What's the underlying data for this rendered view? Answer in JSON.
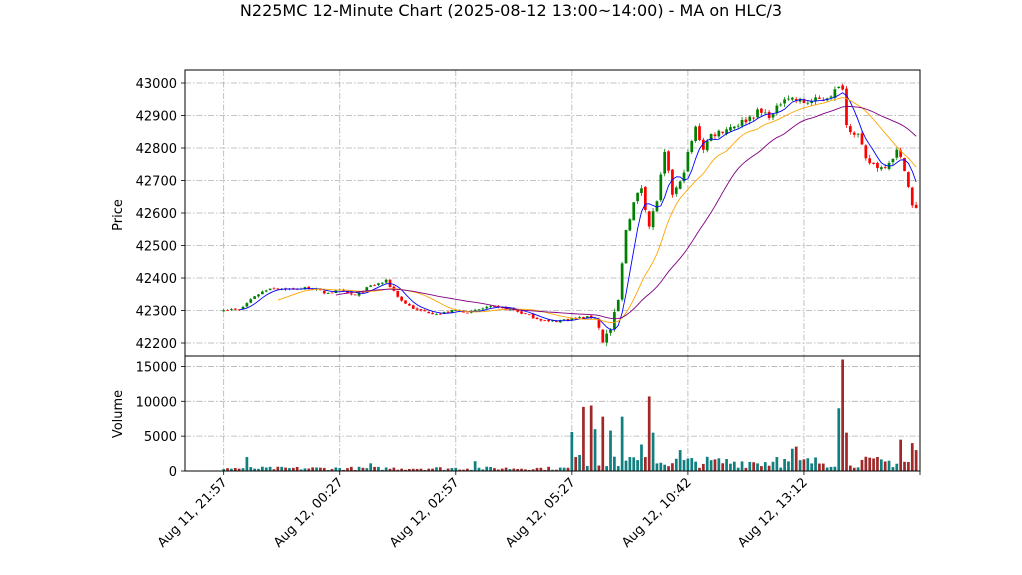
{
  "chart_data": {
    "type": "candlestick",
    "title": "N225MC 12-Minute Chart (2025-08-12 13:00~14:00) - MA on HLC/3",
    "price_panel": {
      "ylabel": "Price",
      "ylim": [
        42160,
        43040
      ],
      "yticks": [
        42200,
        42300,
        42400,
        42500,
        42600,
        42700,
        42800,
        42900,
        43000
      ],
      "ytick_labels": [
        "42200",
        "42300",
        "42400",
        "42500",
        "42600",
        "42700",
        "42800",
        "42900",
        "43000"
      ]
    },
    "volume_panel": {
      "ylabel": "Volume",
      "ylim": [
        0,
        16500
      ],
      "yticks": [
        0,
        5000,
        10000,
        15000
      ],
      "ytick_labels": [
        "0",
        "5000",
        "10000",
        "15000"
      ]
    },
    "x_range": [
      -10,
      180
    ],
    "x_ticks": [
      0,
      30,
      60,
      90,
      120,
      150,
      180
    ],
    "x_tick_labels": [
      "Aug 11, 21:57",
      "Aug 12, 00:27",
      "Aug 12, 02:57",
      "Aug 12, 05:27",
      "Aug 12, 10:42",
      "Aug 12, 13:12",
      ""
    ],
    "bar_count": 180,
    "anchors": [
      [
        0,
        42305
      ],
      [
        4,
        42300
      ],
      [
        8,
        42345
      ],
      [
        12,
        42370
      ],
      [
        18,
        42365
      ],
      [
        22,
        42370
      ],
      [
        26,
        42355
      ],
      [
        30,
        42360
      ],
      [
        34,
        42345
      ],
      [
        38,
        42375
      ],
      [
        42,
        42390
      ],
      [
        46,
        42330
      ],
      [
        50,
        42300
      ],
      [
        56,
        42290
      ],
      [
        60,
        42300
      ],
      [
        64,
        42295
      ],
      [
        68,
        42310
      ],
      [
        74,
        42305
      ],
      [
        80,
        42280
      ],
      [
        84,
        42265
      ],
      [
        90,
        42275
      ],
      [
        96,
        42280
      ],
      [
        98,
        42210
      ],
      [
        100,
        42240
      ],
      [
        102,
        42330
      ],
      [
        104,
        42550
      ],
      [
        106,
        42630
      ],
      [
        108,
        42680
      ],
      [
        110,
        42560
      ],
      [
        112,
        42640
      ],
      [
        114,
        42780
      ],
      [
        116,
        42660
      ],
      [
        118,
        42690
      ],
      [
        120,
        42780
      ],
      [
        122,
        42860
      ],
      [
        124,
        42800
      ],
      [
        126,
        42840
      ],
      [
        130,
        42860
      ],
      [
        134,
        42880
      ],
      [
        138,
        42910
      ],
      [
        142,
        42900
      ],
      [
        145,
        42960
      ],
      [
        150,
        42940
      ],
      [
        155,
        42950
      ],
      [
        158,
        42975
      ],
      [
        160,
        42990
      ],
      [
        161,
        42870
      ],
      [
        164,
        42840
      ],
      [
        166,
        42760
      ],
      [
        170,
        42740
      ],
      [
        172,
        42760
      ],
      [
        174,
        42790
      ],
      [
        176,
        42740
      ],
      [
        177,
        42680
      ],
      [
        178,
        42620
      ],
      [
        179,
        42610
      ]
    ],
    "volume_spikes": [
      [
        6,
        2000
      ],
      [
        38,
        1100
      ],
      [
        65,
        1400
      ],
      [
        90,
        5600
      ],
      [
        92,
        2300
      ],
      [
        93,
        9200
      ],
      [
        95,
        9400
      ],
      [
        96,
        6000
      ],
      [
        98,
        7800
      ],
      [
        100,
        5800
      ],
      [
        103,
        7800
      ],
      [
        105,
        2000
      ],
      [
        108,
        3800
      ],
      [
        110,
        10700
      ],
      [
        111,
        5500
      ],
      [
        118,
        3000
      ],
      [
        143,
        2000
      ],
      [
        147,
        3200
      ],
      [
        148,
        3500
      ],
      [
        159,
        9000
      ],
      [
        160,
        16000
      ],
      [
        161,
        5500
      ],
      [
        175,
        4500
      ],
      [
        178,
        4000
      ],
      [
        179,
        3000
      ]
    ],
    "volume_base": {
      "start": 450,
      "after_open": 1500
    },
    "ma": [
      {
        "period": 5,
        "color": "#0000ff",
        "width": 0.9
      },
      {
        "period": 15,
        "color": "#ffa500",
        "width": 0.9
      },
      {
        "period": 30,
        "color": "#800080",
        "width": 0.9
      }
    ],
    "colors": {
      "up": "#008000",
      "down": "#ff0000",
      "vol_up": "#0f7f7f",
      "vol_down": "#a02828"
    },
    "grid": true
  }
}
